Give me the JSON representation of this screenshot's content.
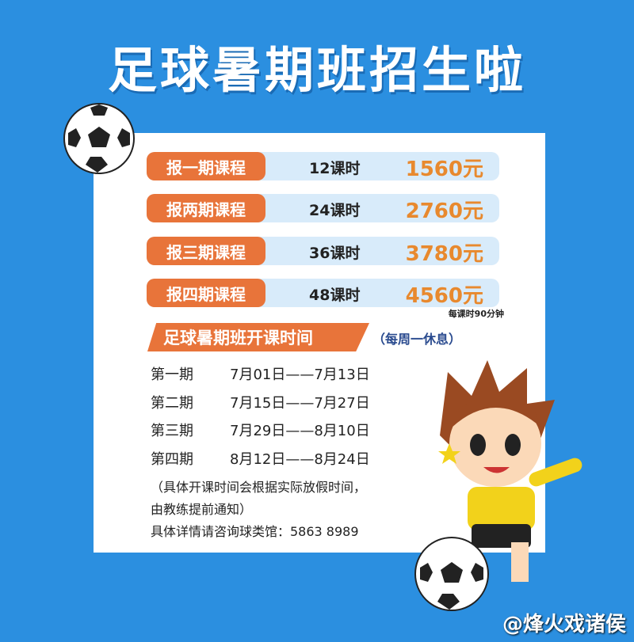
{
  "title": "足球暑期班招生啦",
  "courses": [
    {
      "name": "报一期课程",
      "hours": "12课时",
      "price": "1560元"
    },
    {
      "name": "报两期课程",
      "hours": "24课时",
      "price": "2760元"
    },
    {
      "name": "报三期课程",
      "hours": "36课时",
      "price": "3780元"
    },
    {
      "name": "报四期课程",
      "hours": "48课时",
      "price": "4560元"
    }
  ],
  "lesson_note": "每课时90分钟",
  "schedule": {
    "heading": "足球暑期班开课时间",
    "sub": "（每周一休息）",
    "periods": [
      {
        "name": "第一期",
        "dates": "7月01日——7月13日"
      },
      {
        "name": "第二期",
        "dates": "7月15日——7月27日"
      },
      {
        "name": "第三期",
        "dates": "7月29日——8月10日"
      },
      {
        "name": "第四期",
        "dates": "8月12日——8月24日"
      }
    ],
    "note1": "（具体开课时间会根据实际放假时间，",
    "note2": "由教练提前通知）",
    "contact": "具体详情请咨询球类馆：5863 8989"
  },
  "watermark": "@烽火戏诸侯",
  "colors": {
    "background": "#2b8fe0",
    "accent": "#e8743a",
    "price": "#e8892e"
  }
}
